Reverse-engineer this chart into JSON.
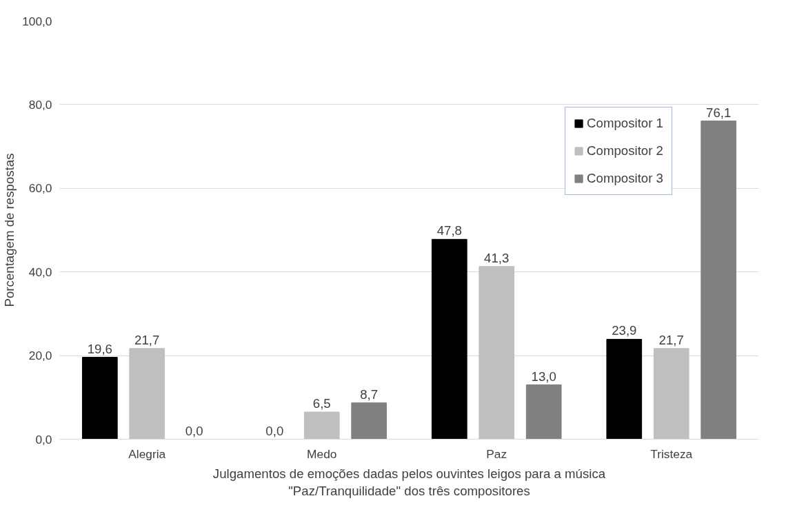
{
  "chart_data": {
    "type": "bar",
    "xlabel": "Julgamentos de emoções dadas pelos ouvintes leigos para a música\n\"Paz/Tranquilidade\" dos três compositores",
    "ylabel": "Porcentagem de respostas",
    "categories": [
      "Alegria",
      "Medo",
      "Paz",
      "Tristeza"
    ],
    "series": [
      {
        "name": "Compositor 1",
        "color": "#000000",
        "values": [
          19.6,
          0.0,
          47.8,
          23.9
        ],
        "value_labels": [
          "19,6",
          "0,0",
          "47,8",
          "23,9"
        ]
      },
      {
        "name": "Compositor 2",
        "color": "#bfbfbf",
        "values": [
          21.7,
          6.5,
          41.3,
          21.7
        ],
        "value_labels": [
          "21,7",
          "6,5",
          "41,3",
          "21,7"
        ]
      },
      {
        "name": "Compositor 3",
        "color": "#808080",
        "values": [
          0.0,
          8.7,
          13.0,
          76.1
        ],
        "value_labels": [
          "0,0",
          "8,7",
          "13,0",
          "76,1"
        ]
      }
    ],
    "ylim": [
      0,
      100
    ],
    "yticks": [
      {
        "value": 0,
        "label": "0,0"
      },
      {
        "value": 20,
        "label": "20,0"
      },
      {
        "value": 40,
        "label": "40,0"
      },
      {
        "value": 60,
        "label": "60,0"
      },
      {
        "value": 80,
        "label": "80,0"
      },
      {
        "value": 100,
        "label": "100,0"
      }
    ],
    "grid": "y",
    "legend": "top right"
  }
}
